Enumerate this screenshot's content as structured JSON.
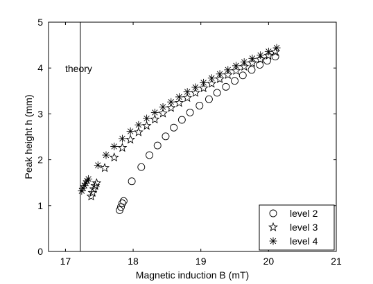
{
  "chart_data": {
    "type": "scatter",
    "title": "",
    "xlabel": "Magnetic induction B (mT)",
    "ylabel": "Peak height h (mm)",
    "xlim": [
      16.75,
      21
    ],
    "ylim": [
      0,
      5
    ],
    "xticks": [
      "17",
      "18",
      "19",
      "20",
      "21"
    ],
    "yticks": [
      "0",
      "1",
      "2",
      "3",
      "4",
      "5"
    ],
    "grid": false,
    "legend_position": "bottom-right",
    "annotation": {
      "text": "theory",
      "x": 17.22
    },
    "series": [
      {
        "name": "level 2",
        "marker": "circle",
        "x": [
          17.8,
          17.82,
          17.84,
          17.86,
          17.98,
          18.12,
          18.24,
          18.36,
          18.48,
          18.6,
          18.72,
          18.84,
          18.98,
          19.12,
          19.24,
          19.37,
          19.5,
          19.62,
          19.75,
          19.87,
          19.98,
          20.1
        ],
        "y": [
          0.9,
          0.97,
          1.05,
          1.1,
          1.53,
          1.84,
          2.1,
          2.31,
          2.51,
          2.7,
          2.87,
          3.03,
          3.18,
          3.32,
          3.46,
          3.59,
          3.72,
          3.84,
          3.96,
          4.07,
          4.16,
          4.25
        ]
      },
      {
        "name": "level 3",
        "marker": "star",
        "x": [
          17.38,
          17.4,
          17.42,
          17.44,
          17.46,
          17.58,
          17.72,
          17.84,
          17.96,
          18.08,
          18.2,
          18.32,
          18.44,
          18.56,
          18.68,
          18.8,
          18.92,
          19.04,
          19.16,
          19.28,
          19.4,
          19.52,
          19.64,
          19.76,
          19.88,
          20.0,
          20.1
        ],
        "y": [
          1.2,
          1.28,
          1.36,
          1.43,
          1.49,
          1.82,
          2.05,
          2.26,
          2.44,
          2.6,
          2.74,
          2.88,
          3.01,
          3.13,
          3.24,
          3.35,
          3.46,
          3.56,
          3.66,
          3.76,
          3.85,
          3.94,
          4.03,
          4.11,
          4.19,
          4.27,
          4.35
        ]
      },
      {
        "name": "level 4",
        "marker": "asterisk",
        "x": [
          17.24,
          17.26,
          17.28,
          17.3,
          17.32,
          17.34,
          17.48,
          17.6,
          17.72,
          17.84,
          17.96,
          18.08,
          18.2,
          18.32,
          18.44,
          18.56,
          18.68,
          18.8,
          18.92,
          19.04,
          19.16,
          19.28,
          19.4,
          19.52,
          19.64,
          19.76,
          19.88,
          20.0,
          20.12
        ],
        "y": [
          1.32,
          1.38,
          1.44,
          1.49,
          1.54,
          1.58,
          1.88,
          2.1,
          2.29,
          2.46,
          2.62,
          2.76,
          2.9,
          3.03,
          3.15,
          3.26,
          3.37,
          3.48,
          3.58,
          3.68,
          3.78,
          3.87,
          3.96,
          4.05,
          4.13,
          4.21,
          4.28,
          4.36,
          4.44
        ]
      }
    ]
  }
}
